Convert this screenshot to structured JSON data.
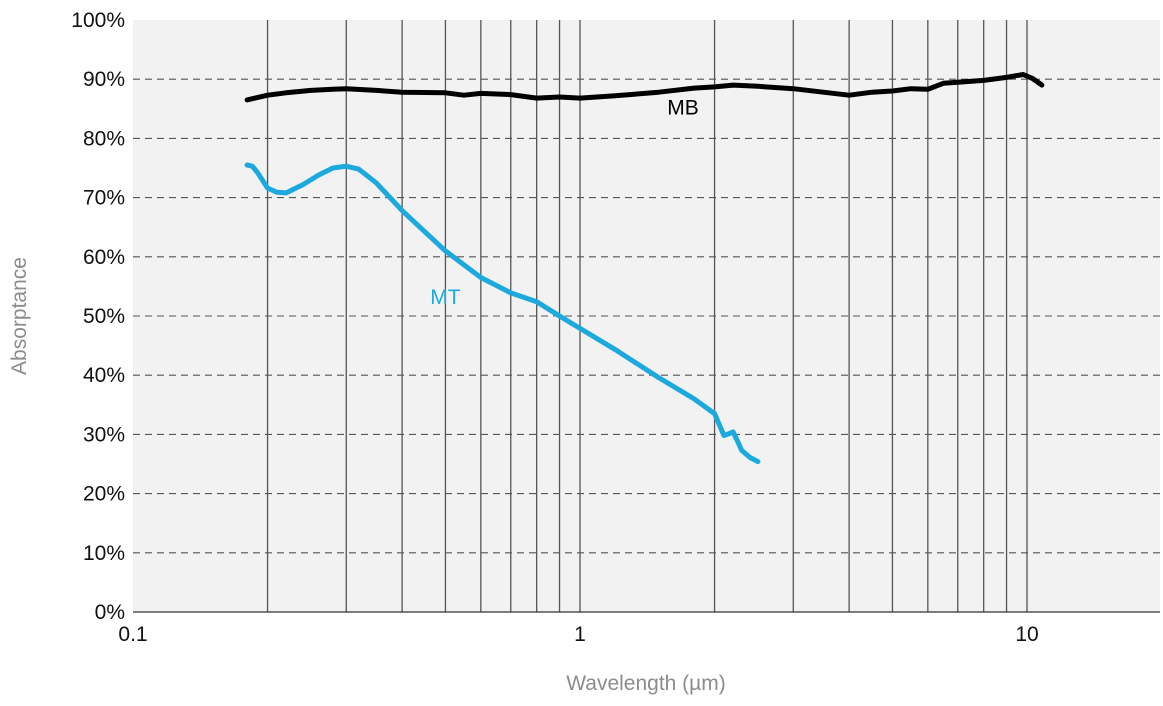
{
  "chart_data": {
    "type": "line",
    "xlabel": "Wavelength (µm)",
    "ylabel": "Absorptance",
    "x_scale": "log",
    "xlim": [
      0.1,
      20
    ],
    "ylim": [
      0,
      100
    ],
    "x_ticks": [
      {
        "value": 0.1,
        "label": "0.1"
      },
      {
        "value": 1,
        "label": "1"
      },
      {
        "value": 10,
        "label": "10"
      }
    ],
    "y_ticks": [
      {
        "value": 0,
        "label": "0%"
      },
      {
        "value": 10,
        "label": "10%"
      },
      {
        "value": 20,
        "label": "20%"
      },
      {
        "value": 30,
        "label": "30%"
      },
      {
        "value": 40,
        "label": "40%"
      },
      {
        "value": 50,
        "label": "50%"
      },
      {
        "value": 60,
        "label": "60%"
      },
      {
        "value": 70,
        "label": "70%"
      },
      {
        "value": 80,
        "label": "80%"
      },
      {
        "value": 90,
        "label": "90%"
      },
      {
        "value": 100,
        "label": "100%"
      }
    ],
    "grid": {
      "x_minor_log": true,
      "y_dashed": true
    },
    "plot_background": "#f2f2f2",
    "series": [
      {
        "name": "MB",
        "color": "#000000",
        "label_at": [
          1.7,
          84
        ],
        "x": [
          0.18,
          0.2,
          0.22,
          0.25,
          0.28,
          0.3,
          0.35,
          0.4,
          0.5,
          0.55,
          0.6,
          0.7,
          0.8,
          0.9,
          1.0,
          1.2,
          1.5,
          1.8,
          2.0,
          2.2,
          2.5,
          3.0,
          3.5,
          4.0,
          4.5,
          5.0,
          5.5,
          6.0,
          6.5,
          7.0,
          8.0,
          9.0,
          9.8,
          10.3,
          10.8
        ],
        "y": [
          86.5,
          87.3,
          87.7,
          88.1,
          88.3,
          88.4,
          88.1,
          87.8,
          87.7,
          87.3,
          87.6,
          87.4,
          86.8,
          87.0,
          86.8,
          87.2,
          87.8,
          88.5,
          88.7,
          89.0,
          88.8,
          88.4,
          87.8,
          87.3,
          87.8,
          88.0,
          88.4,
          88.3,
          89.3,
          89.5,
          89.8,
          90.3,
          90.8,
          90.1,
          89.0
        ]
      },
      {
        "name": "MT",
        "color": "#1ba9de",
        "label_at": [
          0.5,
          52
        ],
        "x": [
          0.18,
          0.185,
          0.19,
          0.2,
          0.21,
          0.22,
          0.24,
          0.26,
          0.28,
          0.3,
          0.32,
          0.35,
          0.4,
          0.5,
          0.6,
          0.7,
          0.8,
          0.9,
          1.0,
          1.2,
          1.5,
          1.8,
          2.0,
          2.1,
          2.15,
          2.2,
          2.25,
          2.3,
          2.4,
          2.5
        ],
        "y": [
          75.5,
          75.3,
          74.2,
          71.6,
          70.9,
          70.8,
          72.2,
          73.8,
          75.0,
          75.3,
          74.8,
          72.5,
          67.8,
          61.0,
          56.5,
          53.9,
          52.4,
          50.0,
          47.9,
          44.3,
          39.6,
          36.0,
          33.5,
          29.8,
          30.1,
          30.4,
          28.9,
          27.3,
          26.1,
          25.4
        ]
      }
    ]
  }
}
